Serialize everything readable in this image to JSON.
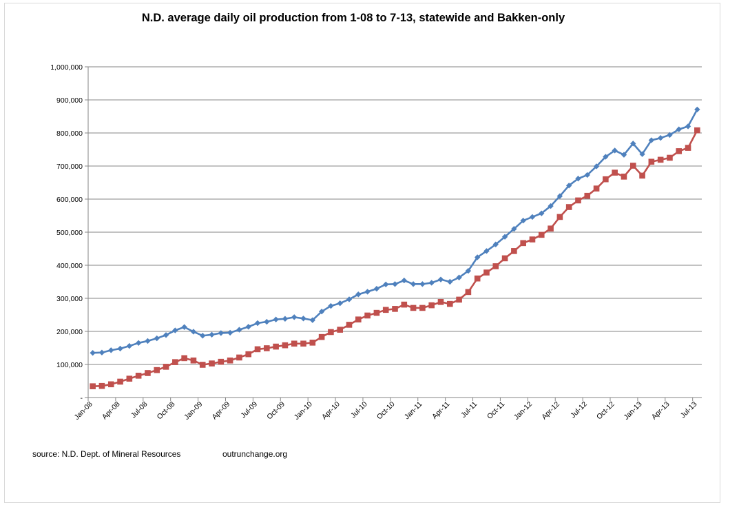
{
  "chart_data": {
    "type": "line",
    "title": "N.D. average daily oil production from 1-08 to 7-13, statewide and Bakken-only",
    "xlabel": "",
    "ylabel": "",
    "ylim": [
      0,
      1000000
    ],
    "yticks": [
      0,
      100000,
      200000,
      300000,
      400000,
      500000,
      600000,
      700000,
      800000,
      900000,
      1000000
    ],
    "ytick_labels": [
      "-",
      "100,000",
      "200,000",
      "300,000",
      "400,000",
      "500,000",
      "600,000",
      "700,000",
      "800,000",
      "900,000",
      "1,000,000"
    ],
    "grid": true,
    "legend": "none",
    "x": [
      "Jan-08",
      "Feb-08",
      "Mar-08",
      "Apr-08",
      "May-08",
      "Jun-08",
      "Jul-08",
      "Aug-08",
      "Sep-08",
      "Oct-08",
      "Nov-08",
      "Dec-08",
      "Jan-09",
      "Feb-09",
      "Mar-09",
      "Apr-09",
      "May-09",
      "Jun-09",
      "Jul-09",
      "Aug-09",
      "Sep-09",
      "Oct-09",
      "Nov-09",
      "Dec-09",
      "Jan-10",
      "Feb-10",
      "Mar-10",
      "Apr-10",
      "May-10",
      "Jun-10",
      "Jul-10",
      "Aug-10",
      "Sep-10",
      "Oct-10",
      "Nov-10",
      "Dec-10",
      "Jan-11",
      "Feb-11",
      "Mar-11",
      "Apr-11",
      "May-11",
      "Jun-11",
      "Jul-11",
      "Aug-11",
      "Sep-11",
      "Oct-11",
      "Nov-11",
      "Dec-11",
      "Jan-12",
      "Feb-12",
      "Mar-12",
      "Apr-12",
      "May-12",
      "Jun-12",
      "Jul-12",
      "Aug-12",
      "Sep-12",
      "Oct-12",
      "Nov-12",
      "Dec-12",
      "Jan-13",
      "Feb-13",
      "Mar-13",
      "Apr-13",
      "May-13",
      "Jun-13",
      "Jul-13"
    ],
    "xtick_labels": [
      "Jan-08",
      "Apr-08",
      "Jul-08",
      "Oct-08",
      "Jan-09",
      "Apr-09",
      "Jul-09",
      "Oct-09",
      "Jan-10",
      "Apr-10",
      "Jul-10",
      "Oct-10",
      "Jan-11",
      "Apr-11",
      "Jul-11",
      "Oct-11",
      "Jan-12",
      "Apr-12",
      "Jul-12",
      "Oct-12",
      "Jan-13",
      "Apr-13",
      "Jul-13"
    ],
    "series": [
      {
        "color": "#4f81bd",
        "marker": "diamond",
        "values": [
          135000,
          136000,
          143000,
          148000,
          156000,
          165000,
          171000,
          179000,
          189000,
          203000,
          213000,
          199000,
          187000,
          190000,
          195000,
          196000,
          205000,
          214000,
          225000,
          229000,
          236000,
          238000,
          243000,
          239000,
          234000,
          260000,
          277000,
          285000,
          297000,
          312000,
          320000,
          329000,
          342000,
          343000,
          354000,
          343000,
          343000,
          347000,
          357000,
          350000,
          363000,
          383000,
          424000,
          443000,
          463000,
          486000,
          510000,
          535000,
          546000,
          557000,
          579000,
          609000,
          641000,
          662000,
          673000,
          699000,
          728000,
          747000,
          734000,
          768000,
          736000,
          778000,
          785000,
          794000,
          811000,
          820000,
          871000
        ]
      },
      {
        "color": "#c0504d",
        "marker": "square",
        "values": [
          34000,
          35000,
          40000,
          48000,
          57000,
          66000,
          74000,
          83000,
          93000,
          107000,
          119000,
          112000,
          99000,
          103000,
          108000,
          112000,
          121000,
          131000,
          146000,
          149000,
          154000,
          158000,
          163000,
          163000,
          166000,
          183000,
          198000,
          205000,
          220000,
          236000,
          248000,
          256000,
          265000,
          268000,
          281000,
          271000,
          271000,
          279000,
          289000,
          283000,
          296000,
          319000,
          360000,
          378000,
          397000,
          421000,
          443000,
          467000,
          478000,
          492000,
          511000,
          546000,
          576000,
          596000,
          610000,
          632000,
          660000,
          680000,
          668000,
          701000,
          671000,
          713000,
          719000,
          725000,
          745000,
          755000,
          808000
        ]
      }
    ]
  },
  "notes": {
    "source": "source: N.D. Dept. of Mineral Resources",
    "site": "outrunchange.org"
  }
}
